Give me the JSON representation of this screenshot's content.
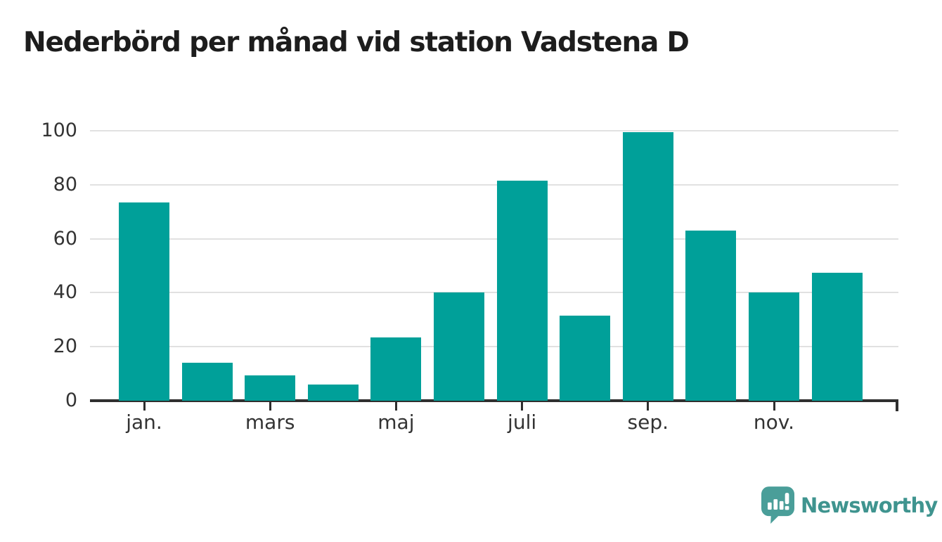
{
  "title": "Nederbörd per månad vid station Vadstena D",
  "logo": {
    "brand": "Newsworthy",
    "icon": "newsworthy-speech-bubble-chart-icon",
    "icon_color": "#4a9e99",
    "text_color": "#3f948f"
  },
  "chart_data": {
    "type": "bar",
    "title": "Nederbörd per månad vid station Vadstena D",
    "values": [
      73.5,
      14,
      9.5,
      6,
      23.5,
      40,
      81.5,
      31.5,
      99.5,
      63,
      40,
      47.5
    ],
    "x_tick_labels": [
      "jan.",
      "mars",
      "maj",
      "juli",
      "sep.",
      "nov."
    ],
    "x_tick_indices": [
      0,
      2,
      4,
      6,
      8,
      10
    ],
    "y_ticks": [
      0,
      20,
      40,
      60,
      80,
      100
    ],
    "ylim": [
      0,
      100
    ],
    "xlabel": "",
    "ylabel": "",
    "bar_color": "#00a099",
    "grid": true,
    "gridline_color": "#e1e1e1",
    "axis_color": "#2f2f2f",
    "legend_position": "none"
  }
}
